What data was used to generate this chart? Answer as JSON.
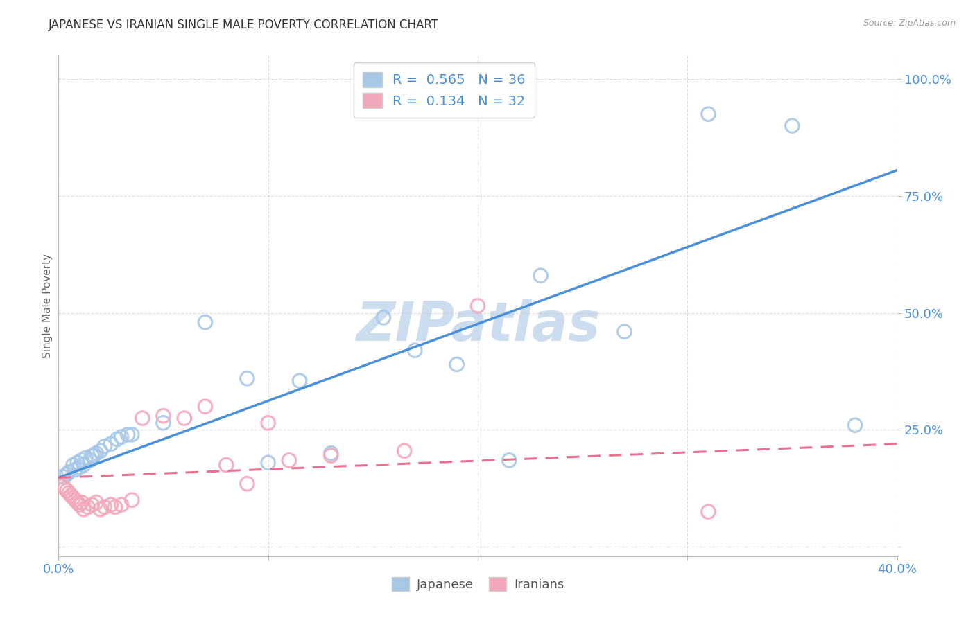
{
  "title": "JAPANESE VS IRANIAN SINGLE MALE POVERTY CORRELATION CHART",
  "source": "Source: ZipAtlas.com",
  "ylabel": "Single Male Poverty",
  "japanese_R": "0.565",
  "japanese_N": "36",
  "iranian_R": "0.134",
  "iranian_N": "32",
  "japanese_color": "#a8c8e8",
  "iranian_color": "#f4a8bc",
  "japanese_line_color": "#4a90d9",
  "iranian_line_color": "#e87090",
  "watermark": "ZIPatlas",
  "watermark_color": "#ccddef",
  "japanese_points_x": [
    0.002,
    0.004,
    0.005,
    0.007,
    0.008,
    0.009,
    0.01,
    0.011,
    0.012,
    0.013,
    0.015,
    0.016,
    0.017,
    0.018,
    0.02,
    0.022,
    0.025,
    0.028,
    0.03,
    0.033,
    0.035,
    0.05,
    0.07,
    0.09,
    0.1,
    0.115,
    0.13,
    0.155,
    0.17,
    0.19,
    0.215,
    0.23,
    0.27,
    0.31,
    0.35,
    0.38
  ],
  "japanese_points_y": [
    0.15,
    0.155,
    0.16,
    0.175,
    0.165,
    0.18,
    0.17,
    0.185,
    0.175,
    0.19,
    0.185,
    0.195,
    0.195,
    0.2,
    0.205,
    0.215,
    0.22,
    0.23,
    0.235,
    0.24,
    0.24,
    0.265,
    0.48,
    0.36,
    0.18,
    0.355,
    0.2,
    0.49,
    0.42,
    0.39,
    0.185,
    0.58,
    0.46,
    0.925,
    0.9,
    0.26
  ],
  "iranian_points_x": [
    0.002,
    0.003,
    0.004,
    0.005,
    0.006,
    0.007,
    0.008,
    0.009,
    0.01,
    0.011,
    0.012,
    0.014,
    0.016,
    0.018,
    0.02,
    0.022,
    0.025,
    0.027,
    0.03,
    0.035,
    0.04,
    0.05,
    0.06,
    0.07,
    0.08,
    0.09,
    0.1,
    0.11,
    0.13,
    0.165,
    0.2,
    0.31
  ],
  "iranian_points_y": [
    0.13,
    0.125,
    0.12,
    0.115,
    0.11,
    0.105,
    0.1,
    0.095,
    0.09,
    0.095,
    0.08,
    0.085,
    0.09,
    0.095,
    0.08,
    0.085,
    0.09,
    0.085,
    0.09,
    0.1,
    0.275,
    0.28,
    0.275,
    0.3,
    0.175,
    0.135,
    0.265,
    0.185,
    0.195,
    0.205,
    0.515,
    0.075
  ],
  "jp_line_x0": 0.0,
  "jp_line_y0": 0.148,
  "jp_line_x1": 0.4,
  "jp_line_y1": 0.805,
  "ir_line_x0": 0.0,
  "ir_line_y0": 0.148,
  "ir_line_x1": 0.4,
  "ir_line_y1": 0.22,
  "xlim": [
    0.0,
    0.4
  ],
  "ylim": [
    -0.02,
    1.05
  ],
  "x_ticks": [
    0.0,
    0.1,
    0.2,
    0.3,
    0.4
  ],
  "y_ticks": [
    0.0,
    0.25,
    0.5,
    0.75,
    1.0
  ],
  "y_tick_labels": [
    "",
    "25.0%",
    "50.0%",
    "75.0%",
    "100.0%"
  ],
  "background_color": "#ffffff",
  "grid_color": "#cccccc"
}
